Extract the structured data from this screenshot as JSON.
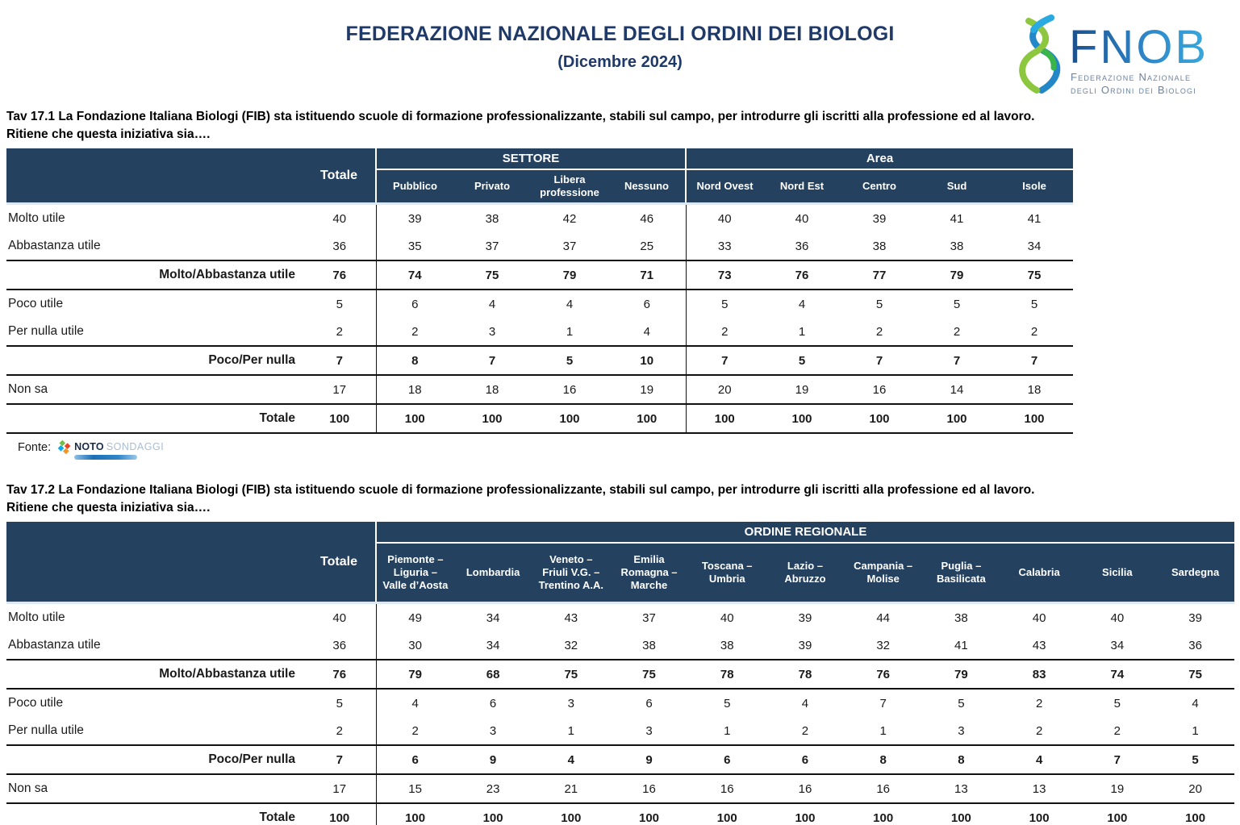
{
  "colors": {
    "header_bg": "#24415F",
    "title_text": "#1F3A68",
    "logo_blue_dark": "#1B5FA6",
    "logo_blue_light": "#29ABE2",
    "logo_green": "#8DC63F",
    "body_text": "#1A1A1A"
  },
  "header": {
    "title": "FEDERAZIONE NAZIONALE DEGLI ORDINI DEI BIOLOGI",
    "subtitle": "(Dicembre 2024)",
    "logo": {
      "acronym": "FNOB",
      "line1": "Federazione Nazionale",
      "line2": "degli Ordini dei Biologi"
    }
  },
  "fonte": {
    "label": "Fonte:",
    "brand_bold": "NOTO",
    "brand_light": "SONDAGGI"
  },
  "tables": [
    {
      "caption_line1": "Tav 17.1 La Fondazione Italiana Biologi (FIB) sta istituendo scuole di formazione professionalizzante, stabili sul campo, per introdurre gli iscritti alla professione ed al lavoro.",
      "caption_line2": "Ritiene che questa iniziativa sia….",
      "total_label": "Totale",
      "groups": [
        {
          "label": "SETTORE",
          "span": 4
        },
        {
          "label": "Area",
          "span": 5
        }
      ],
      "columns": [
        "Pubblico",
        "Privato",
        "Libera\nprofessione",
        "Nessuno",
        "Nord Ovest",
        "Nord Est",
        "Centro",
        "Sud",
        "Isole"
      ],
      "group_starts": [
        0,
        4
      ],
      "body_separators": [
        3
      ],
      "rows": [
        {
          "label": "Molto utile",
          "style": "normal",
          "values": [
            40,
            39,
            38,
            42,
            46,
            40,
            40,
            39,
            41,
            41
          ]
        },
        {
          "label": "Abbastanza utile",
          "style": "normal",
          "values": [
            36,
            35,
            37,
            37,
            25,
            33,
            36,
            38,
            38,
            34
          ]
        },
        {
          "label": "Molto/Abbastanza utile",
          "style": "subtotal",
          "values": [
            76,
            74,
            75,
            79,
            71,
            73,
            76,
            77,
            79,
            75
          ]
        },
        {
          "label": "Poco utile",
          "style": "normal",
          "values": [
            5,
            6,
            4,
            4,
            6,
            5,
            4,
            5,
            5,
            5
          ]
        },
        {
          "label": "Per nulla utile",
          "style": "normal",
          "values": [
            2,
            2,
            3,
            1,
            4,
            2,
            1,
            2,
            2,
            2
          ]
        },
        {
          "label": "Poco/Per nulla",
          "style": "subtotal",
          "values": [
            7,
            8,
            7,
            5,
            10,
            7,
            5,
            7,
            7,
            7
          ]
        },
        {
          "label": "Non sa",
          "style": "normal",
          "values": [
            17,
            18,
            18,
            16,
            19,
            20,
            19,
            16,
            14,
            18
          ]
        },
        {
          "label": "Totale",
          "style": "subtotal",
          "values": [
            100,
            100,
            100,
            100,
            100,
            100,
            100,
            100,
            100,
            100
          ]
        }
      ]
    },
    {
      "caption_line1": "Tav 17.2 La Fondazione Italiana Biologi (FIB) sta istituendo scuole di formazione professionalizzante, stabili sul campo, per introdurre gli iscritti alla professione ed al lavoro.",
      "caption_line2": "Ritiene che questa iniziativa sia….",
      "total_label": "Totale",
      "groups": [
        {
          "label": "ORDINE REGIONALE",
          "span": 11
        }
      ],
      "columns": [
        "Piemonte –\nLiguria –\nValle d’Aosta",
        "Lombardia",
        "Veneto –\nFriuli V.G. –\nTrentino A.A.",
        "Emilia\nRomagna –\nMarche",
        "Toscana –\nUmbria",
        "Lazio –\nAbruzzo",
        "Campania –\nMolise",
        "Puglia –\nBasilicata",
        "Calabria",
        "Sicilia",
        "Sardegna"
      ],
      "group_starts": [
        0
      ],
      "body_separators": [],
      "rows": [
        {
          "label": "Molto utile",
          "style": "normal",
          "values": [
            40,
            49,
            34,
            43,
            37,
            40,
            39,
            44,
            38,
            40,
            40,
            39
          ]
        },
        {
          "label": "Abbastanza utile",
          "style": "normal",
          "values": [
            36,
            30,
            34,
            32,
            38,
            38,
            39,
            32,
            41,
            43,
            34,
            36
          ]
        },
        {
          "label": "Molto/Abbastanza utile",
          "style": "subtotal",
          "values": [
            76,
            79,
            68,
            75,
            75,
            78,
            78,
            76,
            79,
            83,
            74,
            75
          ]
        },
        {
          "label": "Poco utile",
          "style": "normal",
          "values": [
            5,
            4,
            6,
            3,
            6,
            5,
            4,
            7,
            5,
            2,
            5,
            4
          ]
        },
        {
          "label": "Per nulla utile",
          "style": "normal",
          "values": [
            2,
            2,
            3,
            1,
            3,
            1,
            2,
            1,
            3,
            2,
            2,
            1
          ]
        },
        {
          "label": "Poco/Per nulla",
          "style": "subtotal",
          "values": [
            7,
            6,
            9,
            4,
            9,
            6,
            6,
            8,
            8,
            4,
            7,
            5
          ]
        },
        {
          "label": "Non sa",
          "style": "normal",
          "values": [
            17,
            15,
            23,
            21,
            16,
            16,
            16,
            16,
            13,
            13,
            19,
            20
          ]
        },
        {
          "label": "Totale",
          "style": "subtotal",
          "values": [
            100,
            100,
            100,
            100,
            100,
            100,
            100,
            100,
            100,
            100,
            100,
            100
          ]
        }
      ]
    }
  ]
}
